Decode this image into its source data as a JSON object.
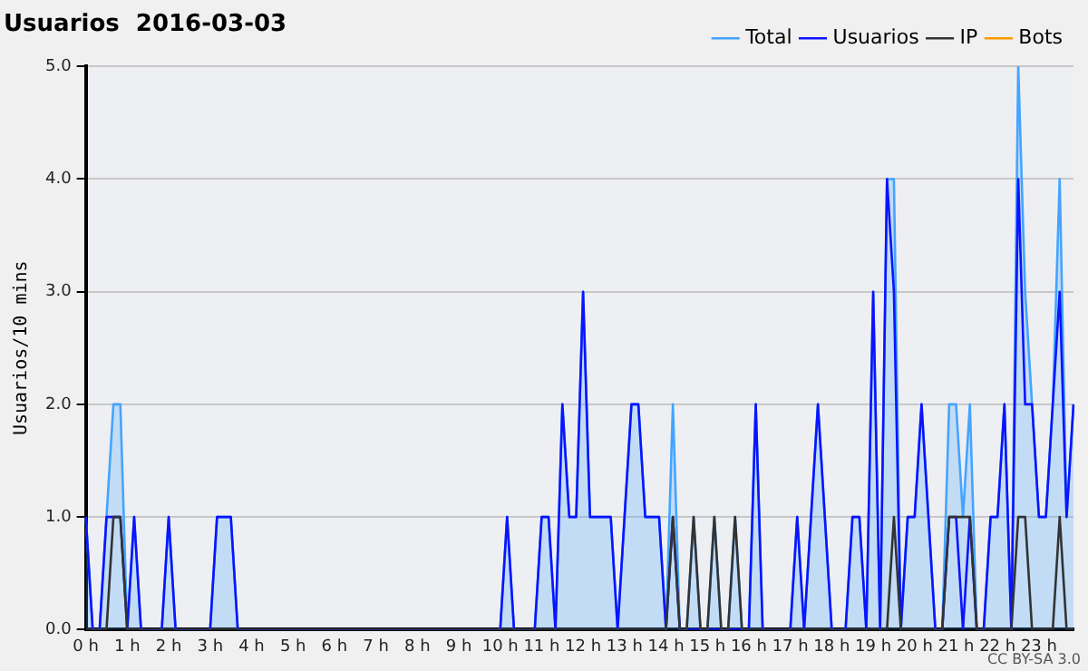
{
  "chart_data": {
    "type": "line",
    "title": "Usuarios  2016-03-03",
    "ylabel": "Usuarios/10 mins",
    "categories": [
      "0 h",
      null,
      null,
      null,
      null,
      null,
      "1 h",
      null,
      null,
      null,
      null,
      null,
      "2 h",
      null,
      null,
      null,
      null,
      null,
      "3 h",
      null,
      null,
      null,
      null,
      null,
      "4 h",
      null,
      null,
      null,
      null,
      null,
      "5 h",
      null,
      null,
      null,
      null,
      null,
      "6 h",
      null,
      null,
      null,
      null,
      null,
      "7 h",
      null,
      null,
      null,
      null,
      null,
      "8 h",
      null,
      null,
      null,
      null,
      null,
      "9 h",
      null,
      null,
      null,
      null,
      null,
      "10 h",
      null,
      null,
      null,
      null,
      null,
      "11 h",
      null,
      null,
      null,
      null,
      null,
      "12 h",
      null,
      null,
      null,
      null,
      null,
      "13 h",
      null,
      null,
      null,
      null,
      null,
      "14 h",
      null,
      null,
      null,
      null,
      null,
      "15 h",
      null,
      null,
      null,
      null,
      null,
      "16 h",
      null,
      null,
      null,
      null,
      null,
      "17 h",
      null,
      null,
      null,
      null,
      null,
      "18 h",
      null,
      null,
      null,
      null,
      null,
      "19 h",
      null,
      null,
      null,
      null,
      null,
      "20 h",
      null,
      null,
      null,
      null,
      null,
      "21 h",
      null,
      null,
      null,
      null,
      null,
      "22 h",
      null,
      null,
      null,
      null,
      null,
      "23 h",
      null,
      null,
      null,
      null,
      null
    ],
    "series": [
      {
        "name": "Total",
        "type": "area",
        "color": "#44a4ff",
        "values": [
          1,
          0,
          0,
          1,
          2,
          2,
          0,
          1,
          0,
          0,
          0,
          0,
          1,
          0,
          0,
          0,
          0,
          0,
          0,
          1,
          1,
          1,
          0,
          0,
          0,
          0,
          0,
          0,
          0,
          0,
          0,
          0,
          0,
          0,
          0,
          0,
          0,
          0,
          0,
          0,
          0,
          0,
          0,
          0,
          0,
          0,
          0,
          0,
          0,
          0,
          0,
          0,
          0,
          0,
          0,
          0,
          0,
          0,
          0,
          0,
          0,
          1,
          0,
          0,
          0,
          0,
          1,
          1,
          0,
          2,
          1,
          1,
          3,
          1,
          1,
          1,
          1,
          0,
          1,
          2,
          2,
          1,
          1,
          1,
          0,
          2,
          0,
          0,
          1,
          0,
          0,
          1,
          0,
          0,
          1,
          0,
          0,
          2,
          0,
          0,
          0,
          0,
          0,
          1,
          0,
          1,
          2,
          1,
          0,
          0,
          0,
          1,
          1,
          0,
          3,
          0,
          4,
          4,
          0,
          1,
          1,
          2,
          1,
          0,
          0,
          2,
          2,
          1,
          2,
          0,
          0,
          1,
          1,
          2,
          0,
          5,
          3,
          2,
          1,
          1,
          2,
          4,
          1,
          2
        ]
      },
      {
        "name": "Usuarios",
        "color": "#0a14ff",
        "values": [
          1,
          0,
          0,
          1,
          1,
          1,
          0,
          1,
          0,
          0,
          0,
          0,
          1,
          0,
          0,
          0,
          0,
          0,
          0,
          1,
          1,
          1,
          0,
          0,
          0,
          0,
          0,
          0,
          0,
          0,
          0,
          0,
          0,
          0,
          0,
          0,
          0,
          0,
          0,
          0,
          0,
          0,
          0,
          0,
          0,
          0,
          0,
          0,
          0,
          0,
          0,
          0,
          0,
          0,
          0,
          0,
          0,
          0,
          0,
          0,
          0,
          1,
          0,
          0,
          0,
          0,
          1,
          1,
          0,
          2,
          1,
          1,
          3,
          1,
          1,
          1,
          1,
          0,
          1,
          2,
          2,
          1,
          1,
          1,
          0,
          1,
          0,
          0,
          0,
          0,
          0,
          0,
          0,
          0,
          0,
          0,
          0,
          2,
          0,
          0,
          0,
          0,
          0,
          1,
          0,
          1,
          2,
          1,
          0,
          0,
          0,
          1,
          1,
          0,
          3,
          0,
          4,
          3,
          0,
          1,
          1,
          2,
          1,
          0,
          0,
          1,
          1,
          0,
          1,
          0,
          0,
          1,
          1,
          2,
          0,
          4,
          2,
          2,
          1,
          1,
          2,
          3,
          1,
          2
        ]
      },
      {
        "name": "IP",
        "color": "#333333",
        "values": [
          0,
          0,
          0,
          0,
          1,
          1,
          0,
          0,
          0,
          0,
          0,
          0,
          0,
          0,
          0,
          0,
          0,
          0,
          0,
          0,
          0,
          0,
          0,
          0,
          0,
          0,
          0,
          0,
          0,
          0,
          0,
          0,
          0,
          0,
          0,
          0,
          0,
          0,
          0,
          0,
          0,
          0,
          0,
          0,
          0,
          0,
          0,
          0,
          0,
          0,
          0,
          0,
          0,
          0,
          0,
          0,
          0,
          0,
          0,
          0,
          0,
          0,
          0,
          0,
          0,
          0,
          0,
          0,
          0,
          0,
          0,
          0,
          0,
          0,
          0,
          0,
          0,
          0,
          0,
          0,
          0,
          0,
          0,
          0,
          0,
          1,
          0,
          0,
          1,
          0,
          0,
          1,
          0,
          0,
          1,
          0,
          0,
          0,
          0,
          0,
          0,
          0,
          0,
          0,
          0,
          0,
          0,
          0,
          0,
          0,
          0,
          0,
          0,
          0,
          0,
          0,
          0,
          1,
          0,
          0,
          0,
          0,
          0,
          0,
          0,
          1,
          1,
          1,
          1,
          0,
          0,
          0,
          0,
          0,
          0,
          1,
          1,
          0,
          0,
          0,
          0,
          1,
          0,
          0
        ]
      },
      {
        "name": "Bots",
        "color": "#ff9900",
        "values": [
          null,
          null,
          null,
          null,
          null,
          null,
          null,
          null,
          null,
          null,
          null,
          null,
          null,
          null,
          null,
          null,
          null,
          null,
          null,
          null,
          null,
          null,
          null,
          null,
          null,
          null,
          null,
          null,
          null,
          null,
          null,
          null,
          null,
          null,
          null,
          null,
          null,
          null,
          null,
          null,
          null,
          null,
          null,
          null,
          null,
          null,
          null,
          null,
          null,
          null,
          null,
          null,
          null,
          null,
          null,
          null,
          null,
          null,
          null,
          null,
          null,
          null,
          null,
          null,
          null,
          null,
          null,
          null,
          null,
          null,
          null,
          null,
          null,
          null,
          null,
          null,
          null,
          null,
          null,
          null,
          null,
          null,
          null,
          null,
          null,
          null,
          null,
          null,
          null,
          null,
          null,
          null,
          null,
          null,
          null,
          null,
          null,
          null,
          null,
          null,
          null,
          null,
          null,
          null,
          null,
          null,
          null,
          null,
          null,
          null,
          null,
          null,
          null,
          null,
          null,
          null,
          null,
          null,
          null,
          null,
          null,
          null,
          null,
          null,
          null,
          null,
          null,
          null,
          null,
          null,
          null,
          null,
          null,
          null,
          null,
          null,
          null,
          null,
          null,
          null,
          null,
          null,
          null,
          null
        ]
      }
    ],
    "ylim": [
      0,
      5
    ],
    "yticks": [
      {
        "value": 0,
        "label": "0.0"
      },
      {
        "value": 1,
        "label": "1.0"
      },
      {
        "value": 2,
        "label": "2.0"
      },
      {
        "value": 3,
        "label": "3.0"
      },
      {
        "value": 4,
        "label": "4.0"
      },
      {
        "value": 5,
        "label": "5.0"
      }
    ],
    "grid": "y",
    "legend": "top right",
    "marker": "none",
    "annotations": [
      "CC BY-SA 3.0"
    ]
  }
}
